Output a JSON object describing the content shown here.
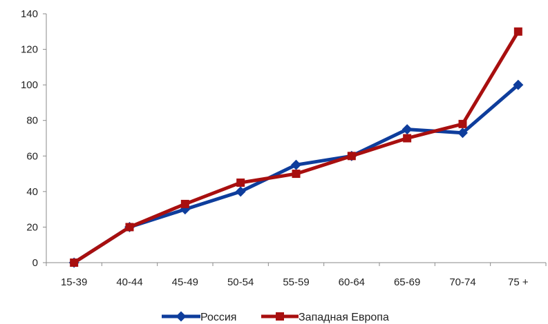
{
  "chart_data": {
    "type": "line",
    "title": "",
    "xlabel": "",
    "ylabel": "",
    "categories": [
      "15-39",
      "40-44",
      "45-49",
      "50-54",
      "55-59",
      "60-64",
      "65-69",
      "70-74",
      "75 +"
    ],
    "ylim": [
      0,
      140
    ],
    "yticks": [
      0,
      20,
      40,
      60,
      80,
      100,
      120,
      140
    ],
    "grid": false,
    "legend_position": "bottom",
    "series": [
      {
        "name": "Россия",
        "color": "#0e3d9c",
        "marker": "diamond",
        "values": [
          0,
          20,
          30,
          40,
          55,
          60,
          75,
          73,
          100
        ]
      },
      {
        "name": "Западная Европа",
        "color": "#a80f0f",
        "marker": "square",
        "values": [
          0,
          20,
          33,
          45,
          50,
          60,
          70,
          78,
          130
        ]
      }
    ]
  }
}
